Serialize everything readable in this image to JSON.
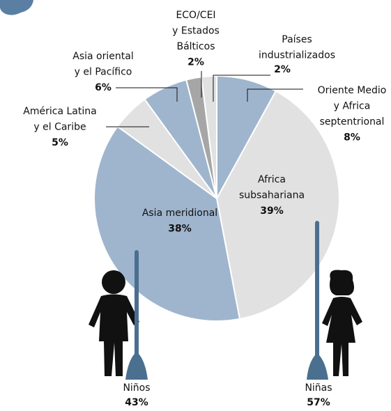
{
  "chart_data": {
    "type": "pie",
    "categories": [
      [
        "Oriente Medio",
        "y Africa",
        "septentrional"
      ],
      [
        "Africa",
        "subsahariana"
      ],
      [
        "Asia meridional"
      ],
      [
        "América Latina",
        "y el Caribe"
      ],
      [
        "Asia oriental",
        "y el Pacífico"
      ],
      [
        "ECO/CEI",
        "y Estados",
        "Bálticos"
      ],
      [
        "Países",
        "industrializados"
      ]
    ],
    "values": [
      8,
      39,
      38,
      5,
      6,
      2,
      2
    ],
    "value_labels": [
      "8%",
      "39%",
      "38%",
      "5%",
      "6%",
      "2%",
      "2%"
    ],
    "colors": [
      "#9fb5cd",
      "#e1e1e1",
      "#9fb5cd",
      "#e1e1e1",
      "#9fb5cd",
      "#a6a6a6",
      "#e1e1e1"
    ],
    "annotations": [
      {
        "text": "Niños",
        "value": 43,
        "label": "43%"
      },
      {
        "text": "Niñas",
        "value": 57,
        "label": "57%"
      }
    ]
  }
}
